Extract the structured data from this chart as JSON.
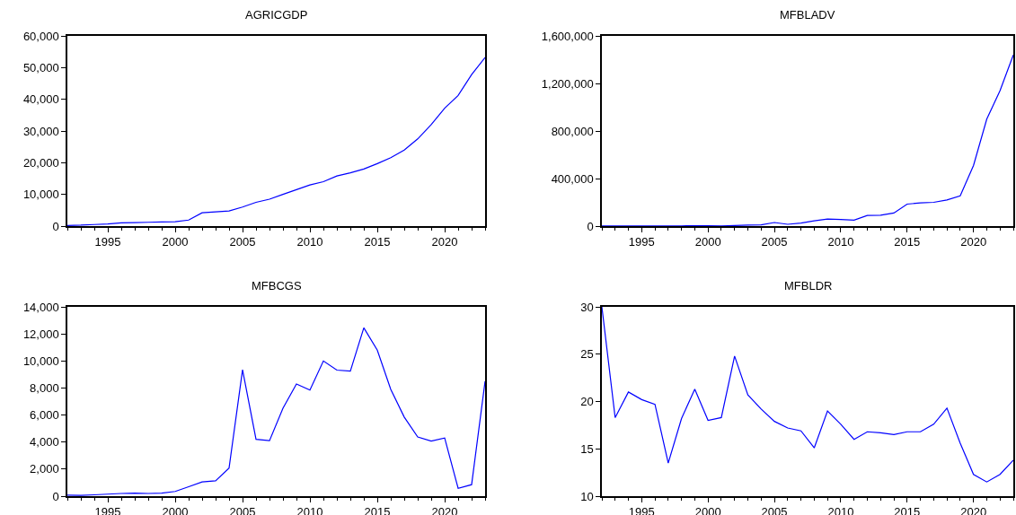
{
  "chart_data": [
    {
      "type": "line",
      "title": "AGRICGDP",
      "x": [
        1992,
        1993,
        1994,
        1995,
        1996,
        1997,
        1998,
        1999,
        2000,
        2001,
        2002,
        2003,
        2004,
        2005,
        2006,
        2007,
        2008,
        2009,
        2010,
        2011,
        2012,
        2013,
        2014,
        2015,
        2016,
        2017,
        2018,
        2019,
        2020,
        2021,
        2022,
        2023
      ],
      "series": [
        {
          "color": "#0000ff",
          "values": [
            200,
            300,
            500,
            700,
            1000,
            1100,
            1200,
            1300,
            1400,
            1900,
            4200,
            4500,
            4800,
            6000,
            7500,
            8500,
            10000,
            11500,
            13000,
            14000,
            15800,
            16800,
            18000,
            19700,
            21600,
            24000,
            27500,
            32000,
            37200,
            41200,
            47800,
            53200
          ]
        }
      ],
      "xlim": [
        1992,
        2023
      ],
      "xticks": [
        1995,
        2000,
        2005,
        2010,
        2015,
        2020
      ],
      "ylim": [
        0,
        60000
      ],
      "yticks": [
        {
          "value": 0,
          "label": "0"
        },
        {
          "value": 10000,
          "label": "10,000"
        },
        {
          "value": 20000,
          "label": "20,000"
        },
        {
          "value": 30000,
          "label": "30,000"
        },
        {
          "value": 40000,
          "label": "40,000"
        },
        {
          "value": 50000,
          "label": "50,000"
        },
        {
          "value": 60000,
          "label": "60,000"
        }
      ]
    },
    {
      "type": "line",
      "title": "MFBLADV",
      "x": [
        1992,
        1993,
        1994,
        1995,
        1996,
        1997,
        1998,
        1999,
        2000,
        2001,
        2002,
        2003,
        2004,
        2005,
        2006,
        2007,
        2008,
        2009,
        2010,
        2011,
        2012,
        2013,
        2014,
        2015,
        2016,
        2017,
        2018,
        2019,
        2020,
        2021,
        2022,
        2023
      ],
      "series": [
        {
          "color": "#0000ff",
          "values": [
            1000,
            1000,
            1000,
            1000,
            2000,
            2000,
            2000,
            3000,
            3000,
            2000,
            5000,
            8000,
            10000,
            30000,
            15000,
            25000,
            45000,
            60000,
            55000,
            50000,
            90000,
            92000,
            110000,
            185000,
            195000,
            200000,
            220000,
            255000,
            510000,
            900000,
            1140000,
            1440000
          ]
        }
      ],
      "xlim": [
        1992,
        2023
      ],
      "xticks": [
        1995,
        2000,
        2005,
        2010,
        2015,
        2020
      ],
      "ylim": [
        0,
        1600000
      ],
      "yticks": [
        {
          "value": 0,
          "label": "0"
        },
        {
          "value": 400000,
          "label": "400,000"
        },
        {
          "value": 800000,
          "label": "800,000"
        },
        {
          "value": 1200000,
          "label": "1,200,000"
        },
        {
          "value": 1600000,
          "label": "1,600,000"
        }
      ]
    },
    {
      "type": "line",
      "title": "MFBCGS",
      "x": [
        1992,
        1993,
        1994,
        1995,
        1996,
        1997,
        1998,
        1999,
        2000,
        2001,
        2002,
        2003,
        2004,
        2005,
        2006,
        2007,
        2008,
        2009,
        2010,
        2011,
        2012,
        2013,
        2014,
        2015,
        2016,
        2017,
        2018,
        2019,
        2020,
        2021,
        2022,
        2023
      ],
      "series": [
        {
          "color": "#0000ff",
          "values": [
            80,
            60,
            100,
            150,
            200,
            230,
            200,
            230,
            350,
            700,
            1050,
            1130,
            2080,
            9350,
            4200,
            4100,
            6500,
            8300,
            7850,
            10000,
            9320,
            9250,
            12450,
            10800,
            7900,
            5850,
            4380,
            4080,
            4300,
            580,
            850,
            8500
          ]
        }
      ],
      "xlim": [
        1992,
        2023
      ],
      "xticks": [
        1995,
        2000,
        2005,
        2010,
        2015,
        2020
      ],
      "ylim": [
        0,
        14000
      ],
      "yticks": [
        {
          "value": 0,
          "label": "0"
        },
        {
          "value": 2000,
          "label": "2,000"
        },
        {
          "value": 4000,
          "label": "4,000"
        },
        {
          "value": 6000,
          "label": "6,000"
        },
        {
          "value": 8000,
          "label": "8,000"
        },
        {
          "value": 10000,
          "label": "10,000"
        },
        {
          "value": 12000,
          "label": "12,000"
        },
        {
          "value": 14000,
          "label": "14,000"
        }
      ]
    },
    {
      "type": "line",
      "title": "MFBLDR",
      "x": [
        1992,
        1993,
        1994,
        1995,
        1996,
        1997,
        1998,
        1999,
        2000,
        2001,
        2002,
        2003,
        2004,
        2005,
        2006,
        2007,
        2008,
        2009,
        2010,
        2011,
        2012,
        2013,
        2014,
        2015,
        2016,
        2017,
        2018,
        2019,
        2020,
        2021,
        2022,
        2023
      ],
      "series": [
        {
          "color": "#0000ff",
          "values": [
            30,
            18.3,
            21,
            20.2,
            19.7,
            13.5,
            18.2,
            21.3,
            18,
            18.3,
            24.8,
            20.7,
            19.2,
            17.9,
            17.2,
            16.9,
            15.1,
            19,
            17.6,
            16,
            16.8,
            16.7,
            16.5,
            16.8,
            16.8,
            17.6,
            19.3,
            15.6,
            12.3,
            11.5,
            12.3,
            13.8
          ]
        }
      ],
      "xlim": [
        1992,
        2023
      ],
      "xticks": [
        1995,
        2000,
        2005,
        2010,
        2015,
        2020
      ],
      "ylim": [
        10,
        30
      ],
      "yticks": [
        10,
        15,
        20,
        25,
        30
      ]
    }
  ]
}
